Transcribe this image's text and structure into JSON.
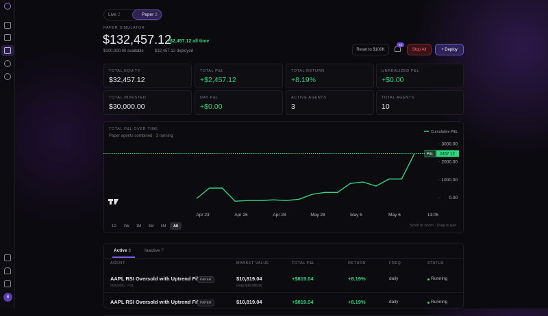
{
  "sidebar": {
    "avatar": "B"
  },
  "mode_tabs": [
    {
      "label": "Live",
      "count": "2"
    },
    {
      "label": "Paper",
      "count": "3"
    }
  ],
  "header": {
    "eyebrow": "PAPER SIMULATOR",
    "balance": "$132,457.12",
    "change": "+$2,457.12 all time",
    "available": "$100,000.00 available",
    "deployed": "$32,457.12 deployed"
  },
  "actions": {
    "reset": "Reset to $100K",
    "badge": "46",
    "stop": "Stop All",
    "deploy": "+ Deploy"
  },
  "stats": [
    {
      "label": "TOTAL EQUITY",
      "value": "$32,457.12"
    },
    {
      "label": "TOTAL P&L",
      "value": "+$2,457.12"
    },
    {
      "label": "TOTAL RETURN",
      "value": "+8.19%"
    },
    {
      "label": "UNREALIZED P&L",
      "value": "+$0.00"
    },
    {
      "label": "TOTAL INVESTED",
      "value": "$30,000.00"
    },
    {
      "label": "DAY P&L",
      "value": "+$0.00"
    },
    {
      "label": "ACTIVE AGENTS",
      "value": "3"
    },
    {
      "label": "TOTAL AGENTS",
      "value": "10"
    }
  ],
  "chart": {
    "type": "line",
    "title": "TOTAL P&L OVER TIME",
    "subtitle": "Paper agents combined · 3 running",
    "legend": "Cumulative P&L",
    "color": "#2fd67f",
    "values": [
      -40,
      540,
      540,
      -190,
      -150,
      -150,
      -115,
      -150,
      -80,
      190,
      300,
      300,
      800,
      880,
      650,
      1040,
      1040,
      2457.12
    ],
    "ylim": [
      -600,
      3200
    ],
    "yticks": [
      {
        "value": 3000,
        "label": "3000.00"
      },
      {
        "value": 2000,
        "label": "2000.00"
      },
      {
        "value": 1000,
        "label": "1000.00"
      },
      {
        "value": 0,
        "label": "0.00"
      }
    ],
    "x_labels": [
      "Apr 23",
      "Apr 26",
      "Apr 28",
      "May 28",
      "May 5",
      "May 6",
      "13:05"
    ],
    "price_line": {
      "tag": "P&L",
      "value": 2457.12,
      "label": "2457.12"
    },
    "ranges": [
      "1D",
      "1W",
      "1M",
      "3M",
      "6M",
      "All"
    ],
    "hint": "Scroll to zoom · Drag to pan"
  },
  "table": {
    "tabs": [
      {
        "label": "Active",
        "count": "3"
      },
      {
        "label": "Inactive",
        "count": "7"
      }
    ],
    "headers": [
      "AGENT",
      "MARKET VALUE",
      "TOTAL P&L",
      "RETURN",
      "FREQ",
      "STATUS"
    ],
    "rows": [
      {
        "agent": "AAPL RSI Oversold with Uptrend Filter",
        "tag": "PAPER",
        "sub": "5fd6d49b · FSL",
        "market_value": "$10,819.04",
        "initial": "Initial $10,000.00",
        "pnl": "+$819.04",
        "return": "+8.19%",
        "freq": "daily",
        "status": "Running"
      },
      {
        "agent": "AAPL RSI Oversold with Uptrend Filter",
        "tag": "PAPER",
        "market_value": "$10,819.04",
        "pnl": "+$819.04",
        "return": "+8.19%",
        "freq": "daily",
        "status": "Running"
      }
    ]
  }
}
